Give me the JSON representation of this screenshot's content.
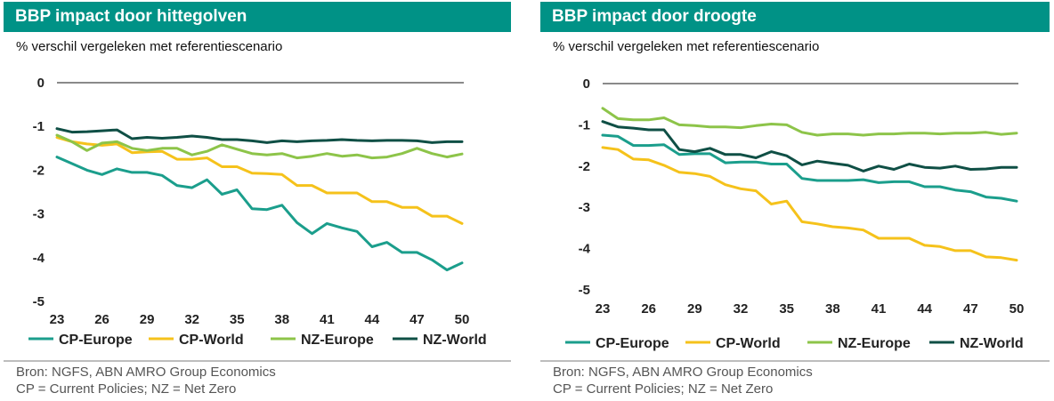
{
  "palette": {
    "CP-Europe": "#1b9e8c",
    "CP-World": "#f5c21b",
    "NZ-Europe": "#8dc449",
    "NZ-World": "#0f4f45",
    "axis": "#8a8a8a",
    "title_bg": "#009286"
  },
  "source": {
    "line1": "Bron: NGFS, ABN AMRO Group Economics",
    "line2": "CP = Current Policies; NZ = Net Zero"
  },
  "charts": [
    {
      "title": "BBP impact door hittegolven",
      "subtitle": "% verschil vergeleken met referentiescenario",
      "chart_data": {
        "type": "line",
        "x": [
          23,
          24,
          25,
          26,
          27,
          28,
          29,
          30,
          31,
          32,
          33,
          34,
          35,
          36,
          37,
          38,
          39,
          40,
          41,
          42,
          43,
          44,
          45,
          46,
          47,
          48,
          49,
          50
        ],
        "x_ticks": [
          "23",
          "26",
          "29",
          "32",
          "35",
          "38",
          "41",
          "44",
          "47",
          "50"
        ],
        "y_ticks": [
          "0",
          "-1",
          "-2",
          "-3",
          "-4",
          "-5"
        ],
        "ylim": [
          -5,
          0
        ],
        "grid": false,
        "legend": "bottom",
        "series": [
          {
            "name": "CP-Europe",
            "values": [
              -1.7,
              -1.85,
              -2.0,
              -2.1,
              -1.97,
              -2.05,
              -2.05,
              -2.12,
              -2.35,
              -2.4,
              -2.22,
              -2.55,
              -2.45,
              -2.88,
              -2.9,
              -2.8,
              -3.2,
              -3.45,
              -3.22,
              -3.32,
              -3.4,
              -3.75,
              -3.65,
              -3.88,
              -3.88,
              -4.05,
              -4.28,
              -4.12
            ]
          },
          {
            "name": "CP-World",
            "values": [
              -1.25,
              -1.35,
              -1.4,
              -1.43,
              -1.4,
              -1.6,
              -1.58,
              -1.57,
              -1.75,
              -1.75,
              -1.72,
              -1.92,
              -1.92,
              -2.07,
              -2.08,
              -2.1,
              -2.35,
              -2.35,
              -2.52,
              -2.52,
              -2.52,
              -2.72,
              -2.72,
              -2.85,
              -2.85,
              -3.05,
              -3.05,
              -3.22
            ]
          },
          {
            "name": "NZ-Europe",
            "values": [
              -1.2,
              -1.35,
              -1.55,
              -1.38,
              -1.35,
              -1.5,
              -1.55,
              -1.5,
              -1.5,
              -1.65,
              -1.57,
              -1.42,
              -1.52,
              -1.62,
              -1.65,
              -1.62,
              -1.72,
              -1.68,
              -1.62,
              -1.68,
              -1.65,
              -1.72,
              -1.7,
              -1.62,
              -1.5,
              -1.62,
              -1.7,
              -1.63
            ]
          },
          {
            "name": "NZ-World",
            "values": [
              -1.05,
              -1.13,
              -1.12,
              -1.1,
              -1.08,
              -1.28,
              -1.25,
              -1.27,
              -1.25,
              -1.22,
              -1.25,
              -1.3,
              -1.3,
              -1.33,
              -1.37,
              -1.33,
              -1.35,
              -1.33,
              -1.32,
              -1.3,
              -1.32,
              -1.33,
              -1.32,
              -1.32,
              -1.33,
              -1.37,
              -1.35,
              -1.35
            ]
          }
        ]
      }
    },
    {
      "title": "BBP impact door droogte",
      "subtitle": "% verschil vergeleken met referentiescenario",
      "chart_data": {
        "type": "line",
        "x": [
          23,
          24,
          25,
          26,
          27,
          28,
          29,
          30,
          31,
          32,
          33,
          34,
          35,
          36,
          37,
          38,
          39,
          40,
          41,
          42,
          43,
          44,
          45,
          46,
          47,
          48,
          49,
          50
        ],
        "x_ticks": [
          "23",
          "26",
          "29",
          "32",
          "35",
          "38",
          "41",
          "44",
          "47",
          "50"
        ],
        "y_ticks": [
          "0",
          "-1",
          "-2",
          "-3",
          "-4",
          "-5"
        ],
        "ylim": [
          -5,
          0
        ],
        "grid": false,
        "legend": "bottom",
        "series": [
          {
            "name": "CP-Europe",
            "values": [
              -1.25,
              -1.28,
              -1.5,
              -1.5,
              -1.48,
              -1.72,
              -1.7,
              -1.7,
              -1.92,
              -1.9,
              -1.9,
              -1.95,
              -1.95,
              -2.3,
              -2.35,
              -2.35,
              -2.35,
              -2.33,
              -2.4,
              -2.38,
              -2.38,
              -2.5,
              -2.5,
              -2.58,
              -2.62,
              -2.75,
              -2.78,
              -2.85
            ]
          },
          {
            "name": "CP-World",
            "values": [
              -1.55,
              -1.6,
              -1.83,
              -1.85,
              -1.98,
              -2.15,
              -2.18,
              -2.25,
              -2.45,
              -2.55,
              -2.6,
              -2.92,
              -2.85,
              -3.35,
              -3.4,
              -3.47,
              -3.5,
              -3.55,
              -3.75,
              -3.75,
              -3.75,
              -3.92,
              -3.95,
              -4.05,
              -4.05,
              -4.2,
              -4.22,
              -4.28
            ]
          },
          {
            "name": "NZ-Europe",
            "values": [
              -0.6,
              -0.85,
              -0.88,
              -0.88,
              -0.83,
              -1.0,
              -1.02,
              -1.05,
              -1.05,
              -1.07,
              -1.02,
              -0.98,
              -1.0,
              -1.18,
              -1.25,
              -1.22,
              -1.22,
              -1.25,
              -1.22,
              -1.22,
              -1.2,
              -1.2,
              -1.22,
              -1.2,
              -1.2,
              -1.18,
              -1.23,
              -1.2
            ]
          },
          {
            "name": "NZ-World",
            "values": [
              -0.92,
              -1.05,
              -1.08,
              -1.12,
              -1.12,
              -1.6,
              -1.65,
              -1.57,
              -1.72,
              -1.72,
              -1.8,
              -1.65,
              -1.75,
              -1.97,
              -1.88,
              -1.93,
              -1.98,
              -2.12,
              -2.0,
              -2.08,
              -1.95,
              -2.03,
              -2.05,
              -2.0,
              -2.08,
              -2.07,
              -2.03,
              -2.03
            ]
          }
        ]
      }
    }
  ]
}
